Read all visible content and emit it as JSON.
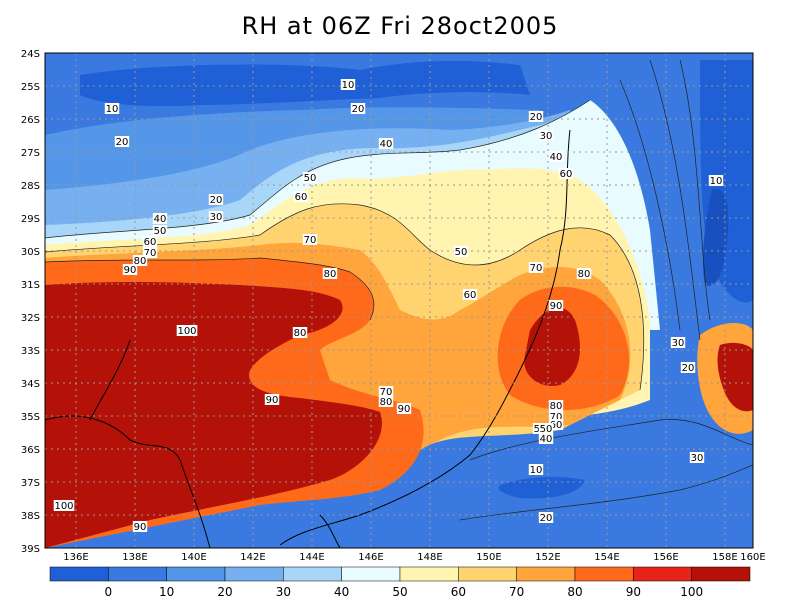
{
  "title": "RH at 06Z Fri 28oct2005",
  "map": {
    "lat_labels": [
      "24S",
      "25S",
      "26S",
      "27S",
      "28S",
      "29S",
      "30S",
      "31S",
      "32S",
      "33S",
      "34S",
      "35S",
      "36S",
      "37S",
      "38S",
      "39S"
    ],
    "lon_labels": [
      "136E",
      "138E",
      "140E",
      "142E",
      "144E",
      "146E",
      "148E",
      "150E",
      "152E",
      "154E",
      "156E",
      "158E",
      "160E"
    ],
    "grid": "dotted",
    "contour_labels": [
      {
        "id": "c1",
        "text": "10"
      },
      {
        "id": "c2",
        "text": "10"
      },
      {
        "id": "c3",
        "text": "20"
      },
      {
        "id": "c4",
        "text": "20"
      },
      {
        "id": "c5",
        "text": "20"
      },
      {
        "id": "c6",
        "text": "30"
      },
      {
        "id": "c7",
        "text": "40"
      },
      {
        "id": "c8",
        "text": "40"
      },
      {
        "id": "c9",
        "text": "50"
      },
      {
        "id": "c10",
        "text": "60"
      },
      {
        "id": "c11",
        "text": "20"
      },
      {
        "id": "c12",
        "text": "30"
      },
      {
        "id": "c13",
        "text": "40"
      },
      {
        "id": "c14",
        "text": "50"
      },
      {
        "id": "c15",
        "text": "60"
      },
      {
        "id": "c16",
        "text": "70"
      },
      {
        "id": "c17",
        "text": "80"
      },
      {
        "id": "c18",
        "text": "90"
      },
      {
        "id": "c19",
        "text": "70"
      },
      {
        "id": "c20",
        "text": "80"
      },
      {
        "id": "c21",
        "text": "100"
      },
      {
        "id": "c22",
        "text": "80"
      },
      {
        "id": "c23",
        "text": "90"
      },
      {
        "id": "c24",
        "text": "50"
      },
      {
        "id": "c25",
        "text": "60"
      },
      {
        "id": "c26",
        "text": "70"
      },
      {
        "id": "c27",
        "text": "80"
      },
      {
        "id": "c28",
        "text": "90"
      },
      {
        "id": "c29",
        "text": "60"
      },
      {
        "id": "c30",
        "text": "50"
      },
      {
        "id": "c31",
        "text": "70"
      },
      {
        "id": "c32",
        "text": "80"
      },
      {
        "id": "c33",
        "text": "90"
      },
      {
        "id": "c34",
        "text": "80"
      },
      {
        "id": "c35",
        "text": "70"
      },
      {
        "id": "c36",
        "text": "60"
      },
      {
        "id": "c37",
        "text": "50"
      },
      {
        "id": "c38",
        "text": "40"
      },
      {
        "id": "c39",
        "text": "10"
      },
      {
        "id": "c40",
        "text": "20"
      },
      {
        "id": "c41",
        "text": "30"
      },
      {
        "id": "c42",
        "text": "20"
      },
      {
        "id": "c43",
        "text": "30"
      },
      {
        "id": "c44",
        "text": "10"
      },
      {
        "id": "c45",
        "text": "100"
      },
      {
        "id": "c46",
        "text": "90"
      }
    ]
  },
  "colorbar": {
    "labels": [
      "0",
      "10",
      "20",
      "30",
      "40",
      "50",
      "60",
      "70",
      "80",
      "90",
      "100"
    ],
    "colors": [
      "#1f60d6",
      "#3a7ae0",
      "#5496e8",
      "#76b0f0",
      "#a8d6f8",
      "#e8fbff",
      "#fff5b0",
      "#ffd470",
      "#ffa53c",
      "#ff6a1a",
      "#e8231a",
      "#b41208"
    ]
  }
}
